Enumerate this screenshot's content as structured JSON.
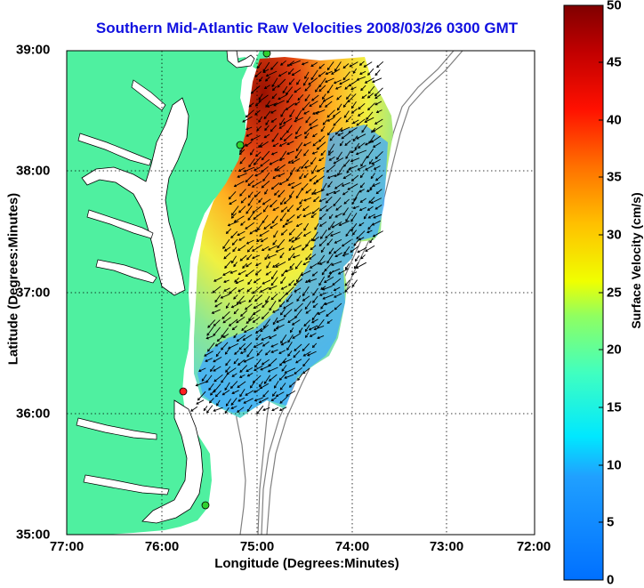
{
  "title": "Southern Mid-Atlantic Raw Velocities 2008/03/26 0300 GMT",
  "xlabel": "Longitude (Degrees:Minutes)",
  "ylabel": "Latitude (Degrees:Minutes)",
  "colorbar_label": "Surface Velocity (cm/s)",
  "x_ticks": [
    "77:00",
    "76:00",
    "75:00",
    "74:00",
    "73:00",
    "72:00"
  ],
  "y_ticks": [
    "39:00",
    "38:00",
    "37:00",
    "36:00",
    "35:00"
  ],
  "colorbar_ticks": [
    "50",
    "45",
    "40",
    "35",
    "30",
    "25",
    "20",
    "15",
    "10",
    "5",
    "0"
  ],
  "colors": {
    "land": "#4ff0a0",
    "title": "#1010e0",
    "bathymetry": "#808080",
    "station_green": "#30d030",
    "station_red": "#ff2020"
  },
  "map": {
    "lon_range": [
      -77,
      -72
    ],
    "lat_range": [
      35,
      39
    ],
    "velocity_range_cm_s": [
      0,
      50
    ],
    "grid": true
  }
}
